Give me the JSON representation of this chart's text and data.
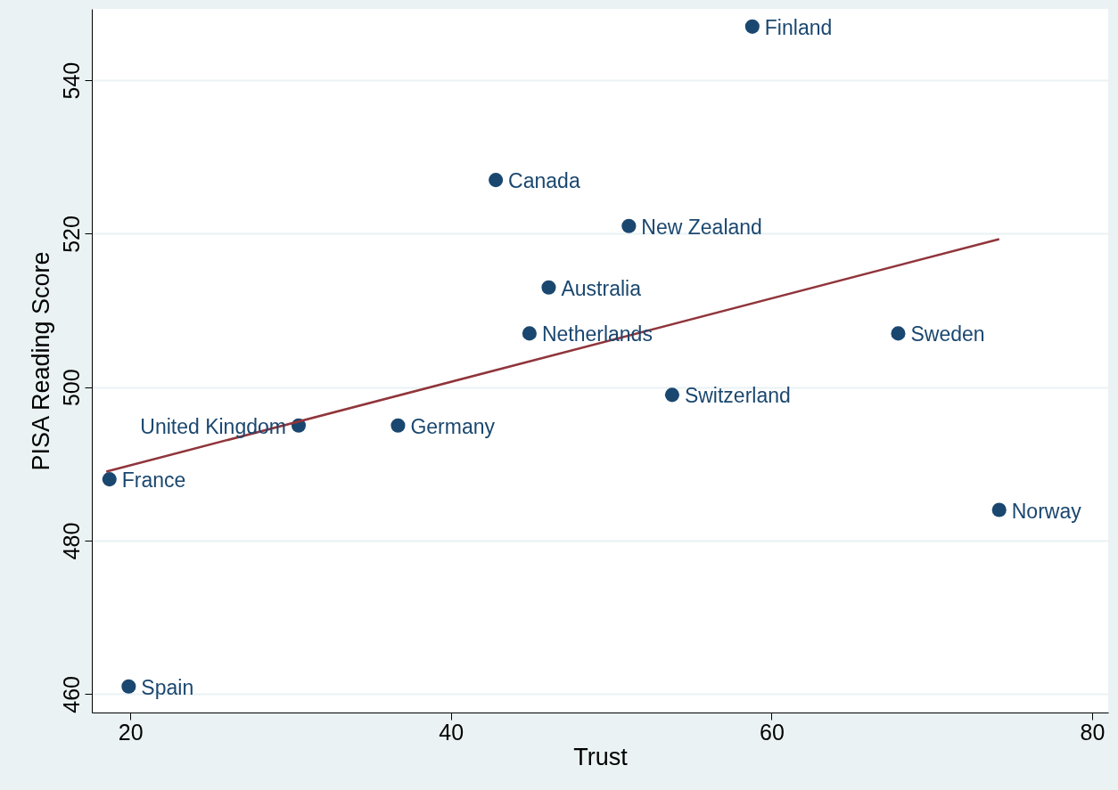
{
  "chart_data": {
    "type": "scatter",
    "xlabel": "Trust",
    "ylabel": "PISA Reading Score",
    "xlim": [
      17.6,
      81
    ],
    "ylim": [
      457.6,
      549.3
    ],
    "xticks": [
      20,
      40,
      60,
      80
    ],
    "yticks": [
      460,
      480,
      500,
      520,
      540
    ],
    "grid": "y",
    "series": [
      {
        "color": "#1a476f",
        "marker": "circle",
        "x": [
          58.8,
          42.8,
          51.1,
          46.1,
          44.9,
          67.9,
          53.8,
          30.5,
          36.7,
          18.7,
          74.2,
          19.9
        ],
        "values": [
          547,
          527,
          521,
          513,
          507,
          507,
          499,
          495,
          495,
          488,
          484,
          461
        ]
      },
      {
        "type": "line",
        "color": "#90353b",
        "line_style": "solid",
        "x": [
          18.5,
          74.2
        ],
        "values": [
          489,
          519.3
        ]
      }
    ],
    "annotations": [
      {
        "text": "Finland",
        "x": 58.8,
        "y": 547
      },
      {
        "text": "Canada",
        "x": 42.8,
        "y": 527
      },
      {
        "text": "New Zealand",
        "x": 51.1,
        "y": 521
      },
      {
        "text": "Australia",
        "x": 46.1,
        "y": 513
      },
      {
        "text": "Netherlands",
        "x": 44.9,
        "y": 507
      },
      {
        "text": "Sweden",
        "x": 67.9,
        "y": 507
      },
      {
        "text": "Switzerland",
        "x": 53.8,
        "y": 499
      },
      {
        "text": "United Kingdom",
        "x": 30.5,
        "y": 495
      },
      {
        "text": "Germany",
        "x": 36.7,
        "y": 495
      },
      {
        "text": "France",
        "x": 18.7,
        "y": 488
      },
      {
        "text": "Norway",
        "x": 74.2,
        "y": 484
      },
      {
        "text": "Spain",
        "x": 19.9,
        "y": 461
      }
    ]
  }
}
